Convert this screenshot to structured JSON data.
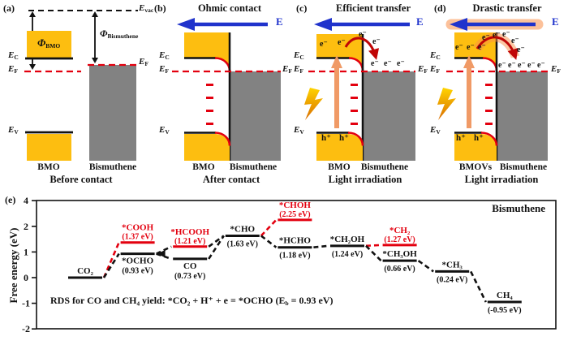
{
  "figure": {
    "panels": {
      "a": {
        "tag": "(a)",
        "caption": "Before contact",
        "material_left": "BMO",
        "material_right": "Bismuthene"
      },
      "b": {
        "tag": "(b)",
        "title": "Ohmic contact",
        "caption": "After contact",
        "material_left": "BMO",
        "material_right": "Bismuthene"
      },
      "c": {
        "tag": "(c)",
        "title": "Efficient transfer",
        "caption": "Light irradiation",
        "material_left": "BMO",
        "material_right": "Bismuthene"
      },
      "d": {
        "tag": "(d)",
        "title": "Drastic transfer",
        "caption": "Light irradiation",
        "material_left": "BMOVs",
        "material_right": "Bismuthene"
      },
      "e": {
        "tag": "(e)"
      }
    },
    "sym": {
      "E": "E",
      "sub_vac": "vac",
      "sub_C": "C",
      "sub_F": "F",
      "sub_V": "V",
      "phi": "Φ",
      "sub_BMO": "BMO",
      "sub_Bismuthene": "Bismuthene",
      "electron": "e⁻",
      "hole": "h⁺",
      "field": "E"
    }
  },
  "colors": {
    "yellow": "#FDBE10",
    "gray": "#828282",
    "red": "#E3000F",
    "blue": "#2033CC",
    "dark_red": "#C00505",
    "glow_orange": "#FA9048",
    "black": "#111111"
  },
  "chart_data": {
    "type": "line",
    "subtype": "free-energy-profile",
    "corner_label": "Bismuthene",
    "ylabel": "Free energy (eV)",
    "ytick_labels": [
      "4",
      "2",
      "1",
      "0",
      "-1",
      "-2"
    ],
    "ylim": [
      -2,
      4
    ],
    "rds": {
      "prefix": "RDS for CO and CH₄ yield: *CO₂ + H⁺ + e = *OCHO (E",
      "sub": "b",
      "suffix": " = 0.93 eV)"
    },
    "arrow_at": "OCHO",
    "levels": [
      {
        "id": "CO2",
        "label": "CO₂",
        "energy": 0.0,
        "value_label": "",
        "step": 1,
        "color": "black",
        "label_above": true,
        "value_above": false
      },
      {
        "id": "COOH",
        "label": "*COOH",
        "energy": 1.37,
        "value_label": "(1.37 eV)",
        "step": 2,
        "color": "red",
        "label_above": true,
        "value_above": true
      },
      {
        "id": "OCHO",
        "label": "*OCHO",
        "energy": 0.93,
        "value_label": "(0.93 eV)",
        "step": 2,
        "color": "black",
        "label_above": false,
        "value_above": false
      },
      {
        "id": "HCOOH",
        "label": "*HCOOH",
        "energy": 1.21,
        "value_label": "(1.21 eV)",
        "step": 3,
        "color": "red",
        "label_above": true,
        "value_above": true
      },
      {
        "id": "CO",
        "label": "CO",
        "energy": 0.73,
        "value_label": "(0.73 eV)",
        "step": 3,
        "color": "black",
        "label_above": false,
        "value_above": false
      },
      {
        "id": "CHO",
        "label": "*CHO",
        "energy": 1.63,
        "value_label": "(1.63 eV)",
        "step": 4,
        "color": "black",
        "label_above": true,
        "value_above": false
      },
      {
        "id": "CHOH",
        "label": "*CHOH",
        "energy": 2.25,
        "value_label": "(2.25 eV)",
        "step": 5,
        "color": "red",
        "label_above": true,
        "value_above": true
      },
      {
        "id": "HCHO",
        "label": "*HCHO",
        "energy": 1.18,
        "value_label": "(1.18 eV)",
        "step": 5,
        "color": "black",
        "label_above": true,
        "value_above": false
      },
      {
        "id": "CH2OH",
        "label": "*CH₂OH",
        "energy": 1.24,
        "value_label": "(1.24 eV)",
        "step": 6,
        "color": "black",
        "label_above": true,
        "value_above": false
      },
      {
        "id": "CH2",
        "label": "*CH₂",
        "energy": 1.27,
        "value_label": "(1.27 eV)",
        "step": 7,
        "color": "red",
        "label_above": true,
        "value_above": true
      },
      {
        "id": "CH3OH",
        "label": "*CH₃OH",
        "energy": 0.66,
        "value_label": "(0.66 eV)",
        "step": 7,
        "color": "black",
        "label_above": true,
        "value_above": false
      },
      {
        "id": "CH3",
        "label": "*CH₃",
        "energy": 0.24,
        "value_label": "(0.24 eV)",
        "step": 8,
        "color": "black",
        "label_above": true,
        "value_above": false
      },
      {
        "id": "CH4",
        "label": "CH₄",
        "energy": -0.95,
        "value_label": "(-0.95 eV)",
        "step": 9,
        "color": "black",
        "label_above": true,
        "value_above": false
      }
    ],
    "paths": [
      {
        "from": "CO2",
        "to": "COOH",
        "color": "red"
      },
      {
        "from": "CO2",
        "to": "OCHO",
        "color": "black"
      },
      {
        "from": "OCHO",
        "to": "HCOOH",
        "color": "black"
      },
      {
        "from": "OCHO",
        "to": "CO",
        "color": "black"
      },
      {
        "from": "CO",
        "to": "CHO",
        "color": "black"
      },
      {
        "from": "HCOOH",
        "to": "CHO",
        "color": "black"
      },
      {
        "from": "CHO",
        "to": "CHOH",
        "color": "red"
      },
      {
        "from": "CHO",
        "to": "HCHO",
        "color": "black"
      },
      {
        "from": "HCHO",
        "to": "CH2OH",
        "color": "black"
      },
      {
        "from": "CH2OH",
        "to": "CH2",
        "color": "red"
      },
      {
        "from": "CH2OH",
        "to": "CH3OH",
        "color": "black"
      },
      {
        "from": "CH3OH",
        "to": "CH3",
        "color": "black"
      },
      {
        "from": "CH3",
        "to": "CH4",
        "color": "black"
      }
    ]
  }
}
